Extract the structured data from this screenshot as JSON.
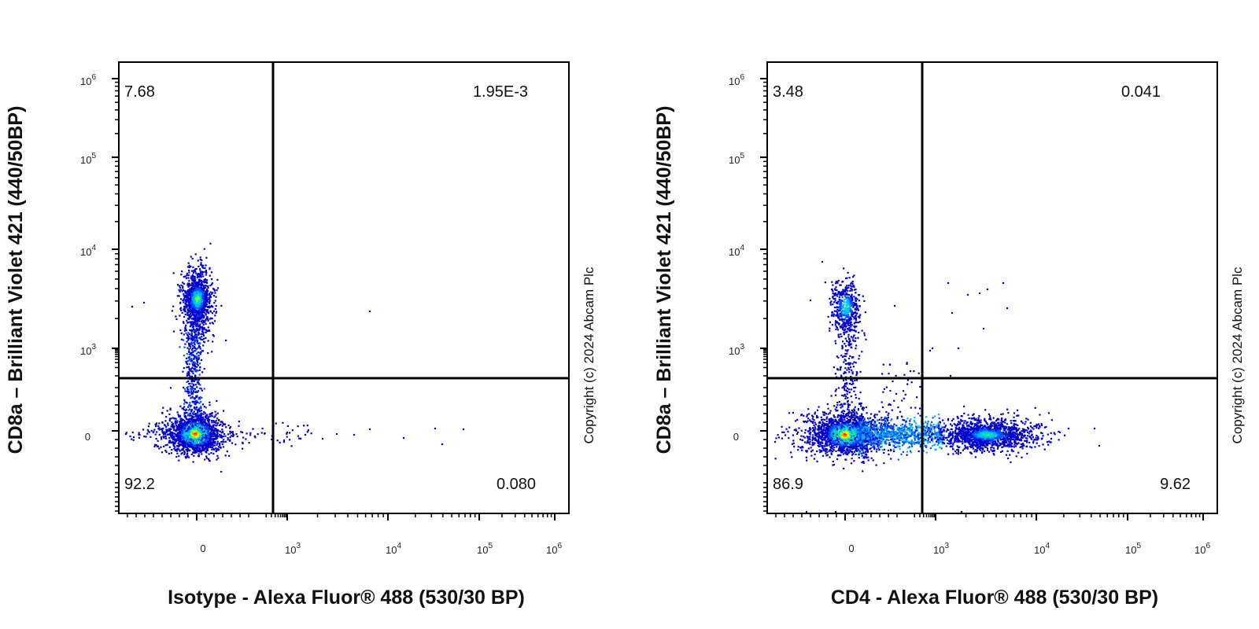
{
  "chart_data": [
    {
      "type": "scatter",
      "xlabel": "Isotype - Alexa Fluor® 488 (530/30 BP)",
      "ylabel": "CD8a – Brilliant Violet 421 (440/50BP)",
      "copyright": "Copyright (c) 2024 Abcam Plc",
      "x_scale": "biexponential",
      "y_scale": "biexponential",
      "x_ticks": [
        {
          "base": "0",
          "exp": ""
        },
        {
          "base": "10",
          "exp": "3"
        },
        {
          "base": "10",
          "exp": "4"
        },
        {
          "base": "10",
          "exp": "5"
        },
        {
          "base": "10",
          "exp": "6"
        }
      ],
      "y_ticks": [
        {
          "base": "0",
          "exp": ""
        },
        {
          "base": "10",
          "exp": "3"
        },
        {
          "base": "10",
          "exp": "4"
        },
        {
          "base": "10",
          "exp": "5"
        },
        {
          "base": "10",
          "exp": "6"
        }
      ],
      "quadrant_gate": {
        "x": 750,
        "y": 500
      },
      "quadrants": {
        "upper_left": "7.68",
        "upper_right": "1.95E-3",
        "lower_left": "92.2",
        "lower_right": "0.080"
      },
      "populations": [
        {
          "label": "double-negative",
          "x": 0,
          "y": 0,
          "density": "highest"
        },
        {
          "label": "CD8a+",
          "x": 0,
          "y": 2500,
          "density": "high"
        }
      ]
    },
    {
      "type": "scatter",
      "xlabel": "CD4 - Alexa Fluor® 488 (530/30 BP)",
      "ylabel": "CD8a – Brilliant Violet 421 (440/50BP)",
      "copyright": "Copyright (c) 2024 Abcam Plc",
      "x_scale": "biexponential",
      "y_scale": "biexponential",
      "x_ticks": [
        {
          "base": "0",
          "exp": ""
        },
        {
          "base": "10",
          "exp": "3"
        },
        {
          "base": "10",
          "exp": "4"
        },
        {
          "base": "10",
          "exp": "5"
        },
        {
          "base": "10",
          "exp": "6"
        }
      ],
      "y_ticks": [
        {
          "base": "0",
          "exp": ""
        },
        {
          "base": "10",
          "exp": "3"
        },
        {
          "base": "10",
          "exp": "4"
        },
        {
          "base": "10",
          "exp": "5"
        },
        {
          "base": "10",
          "exp": "6"
        }
      ],
      "quadrant_gate": {
        "x": 750,
        "y": 500
      },
      "quadrants": {
        "upper_left": "3.48",
        "upper_right": "0.041",
        "lower_left": "86.9",
        "lower_right": "9.62"
      },
      "populations": [
        {
          "label": "double-negative",
          "x": 0,
          "y": 0,
          "density": "highest"
        },
        {
          "label": "CD8a+",
          "x": 0,
          "y": 2500,
          "density": "high"
        },
        {
          "label": "CD4+",
          "x": 4000,
          "y": 0,
          "density": "medium"
        }
      ]
    }
  ],
  "colors": {
    "density": [
      "#0000cc",
      "#0050ff",
      "#00b4ff",
      "#00e0c0",
      "#7dff3c",
      "#ffee00",
      "#ff8c00",
      "#ff1a00"
    ],
    "gate": "#000000"
  }
}
